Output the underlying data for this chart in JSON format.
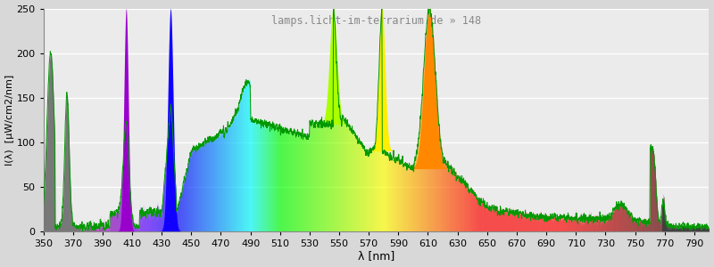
{
  "wavelength_min": 350,
  "wavelength_max": 800,
  "ylim": [
    0,
    250
  ],
  "ylabel": "I(λ)  [µW/cm2∕nm]",
  "xlabel": "λ [nm]",
  "title": "lamps.licht-im-terrarium.de » 148",
  "title_color": "#888888",
  "background_color": "#d8d8d8",
  "plot_bg_color_top": "#e8e8e8",
  "plot_bg_color_bottom": "#f8f8f8",
  "grid_color": "#ffffff",
  "xticks": [
    350,
    370,
    390,
    410,
    430,
    450,
    470,
    490,
    510,
    530,
    550,
    570,
    590,
    610,
    630,
    650,
    670,
    690,
    710,
    730,
    750,
    770,
    790
  ],
  "yticks": [
    0,
    50,
    100,
    150,
    200,
    250
  ]
}
